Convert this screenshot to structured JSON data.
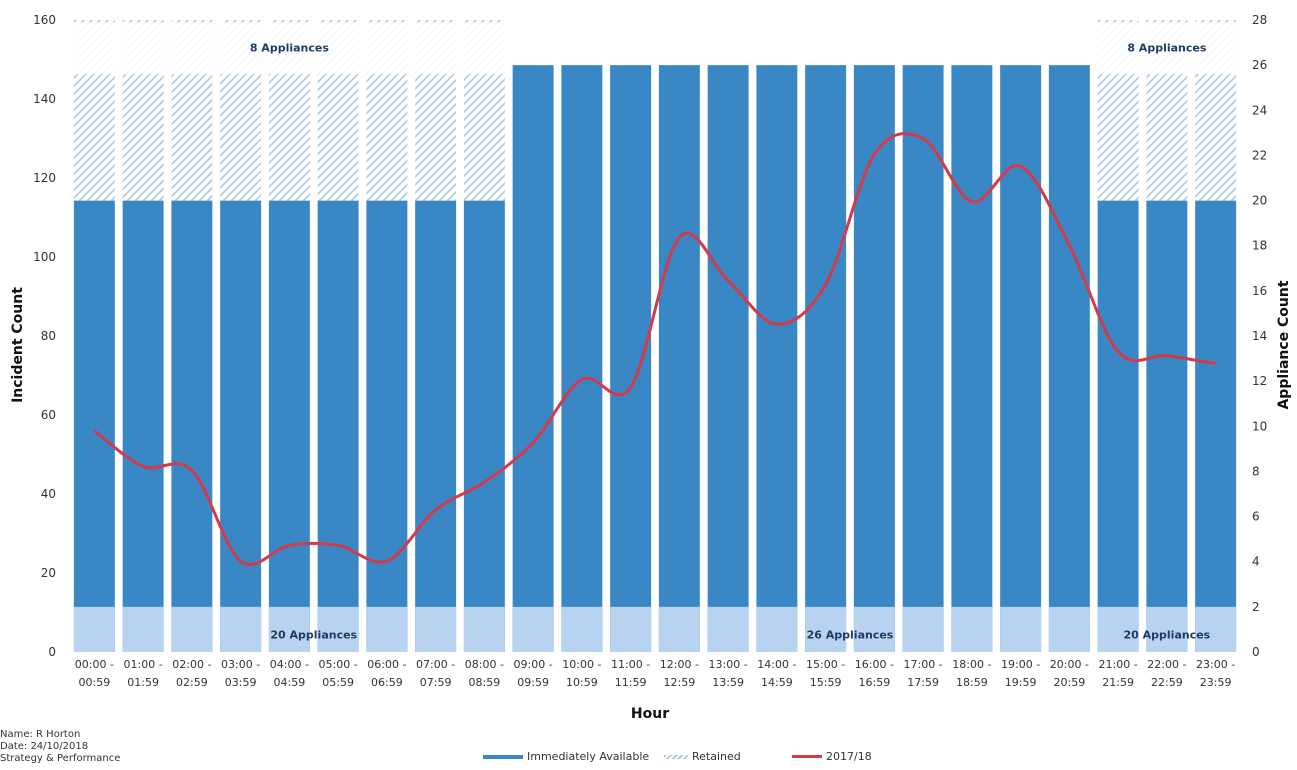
{
  "chart_data": {
    "type": "bar",
    "title": "",
    "xlabel": "Hour",
    "ylabel": "Incident Count",
    "y2label": "Appliance Count",
    "ylim": [
      0,
      160
    ],
    "yticks": [
      0,
      20,
      40,
      60,
      80,
      100,
      120,
      140,
      160
    ],
    "y2lim": [
      0,
      28
    ],
    "y2ticks": [
      0,
      2,
      4,
      6,
      8,
      10,
      12,
      14,
      16,
      18,
      20,
      22,
      24,
      26,
      28
    ],
    "categories": [
      [
        "00:00 -",
        "00:59"
      ],
      [
        "01:00 -",
        "01:59"
      ],
      [
        "02:00 -",
        "02:59"
      ],
      [
        "03:00 -",
        "03:59"
      ],
      [
        "04:00 -",
        "04:59"
      ],
      [
        "05:00 -",
        "05:59"
      ],
      [
        "06:00 -",
        "06:59"
      ],
      [
        "07:00 -",
        "07:59"
      ],
      [
        "08:00 -",
        "08:59"
      ],
      [
        "09:00 -",
        "09:59"
      ],
      [
        "10:00 -",
        "10:59"
      ],
      [
        "11:00 -",
        "11:59"
      ],
      [
        "12:00 -",
        "12:59"
      ],
      [
        "13:00 -",
        "13:59"
      ],
      [
        "14:00 -",
        "14:59"
      ],
      [
        "15:00 -",
        "15:59"
      ],
      [
        "16:00 -",
        "16:59"
      ],
      [
        "17:00 -",
        "17:59"
      ],
      [
        "18:00 -",
        "18:59"
      ],
      [
        "19:00 -",
        "19:59"
      ],
      [
        "20:00 -",
        "20:59"
      ],
      [
        "21:00 -",
        "21:59"
      ],
      [
        "22:00 -",
        "22:59"
      ],
      [
        "23:00 -",
        "23:59"
      ]
    ],
    "series": [
      {
        "name": "Immediately Available",
        "axis": "y2",
        "color": "#3a87c6",
        "values": [
          20,
          20,
          20,
          20,
          20,
          20,
          20,
          20,
          20,
          26,
          26,
          26,
          26,
          26,
          26,
          26,
          26,
          26,
          26,
          26,
          26,
          20,
          20,
          20
        ]
      },
      {
        "name": "Retained",
        "axis": "y2",
        "color": "#a9c8e8",
        "values": [
          8,
          8,
          8,
          8,
          8,
          8,
          8,
          8,
          8,
          0,
          0,
          0,
          0,
          0,
          0,
          0,
          0,
          0,
          0,
          0,
          0,
          8,
          8,
          8
        ]
      },
      {
        "name": "2017/18",
        "axis": "y",
        "type": "line",
        "color": "#d43a4a",
        "values": [
          56,
          47,
          46,
          23,
          27,
          27,
          23,
          36,
          43,
          53,
          69,
          67,
          105,
          94,
          83,
          93,
          126,
          130,
          114,
          123,
          103,
          76,
          75,
          73
        ]
      }
    ],
    "band_labels": [
      {
        "text": "8 Appliances",
        "from": 0,
        "to": 8,
        "level": "top"
      },
      {
        "text": "8 Appliances",
        "from": 21,
        "to": 23,
        "level": "top"
      },
      {
        "text": "20 Appliances",
        "from": 3,
        "to": 6,
        "level": "bottom"
      },
      {
        "text": "26 Appliances",
        "from": 13,
        "to": 18,
        "level": "bottom"
      },
      {
        "text": "20 Appliances",
        "from": 21,
        "to": 23,
        "level": "bottom"
      }
    ],
    "grid": false,
    "legend_position": "bottom-center"
  },
  "legend": {
    "items": [
      {
        "label": "Immediately Available",
        "color": "#3a87c6"
      },
      {
        "label": "Retained",
        "color": "#a9c8e8"
      },
      {
        "label": "2017/18",
        "color": "#d43a4a"
      }
    ]
  },
  "footer": {
    "name": "Name: R Horton",
    "date": "Date: 24/10/2018",
    "dept": "Strategy & Performance"
  }
}
